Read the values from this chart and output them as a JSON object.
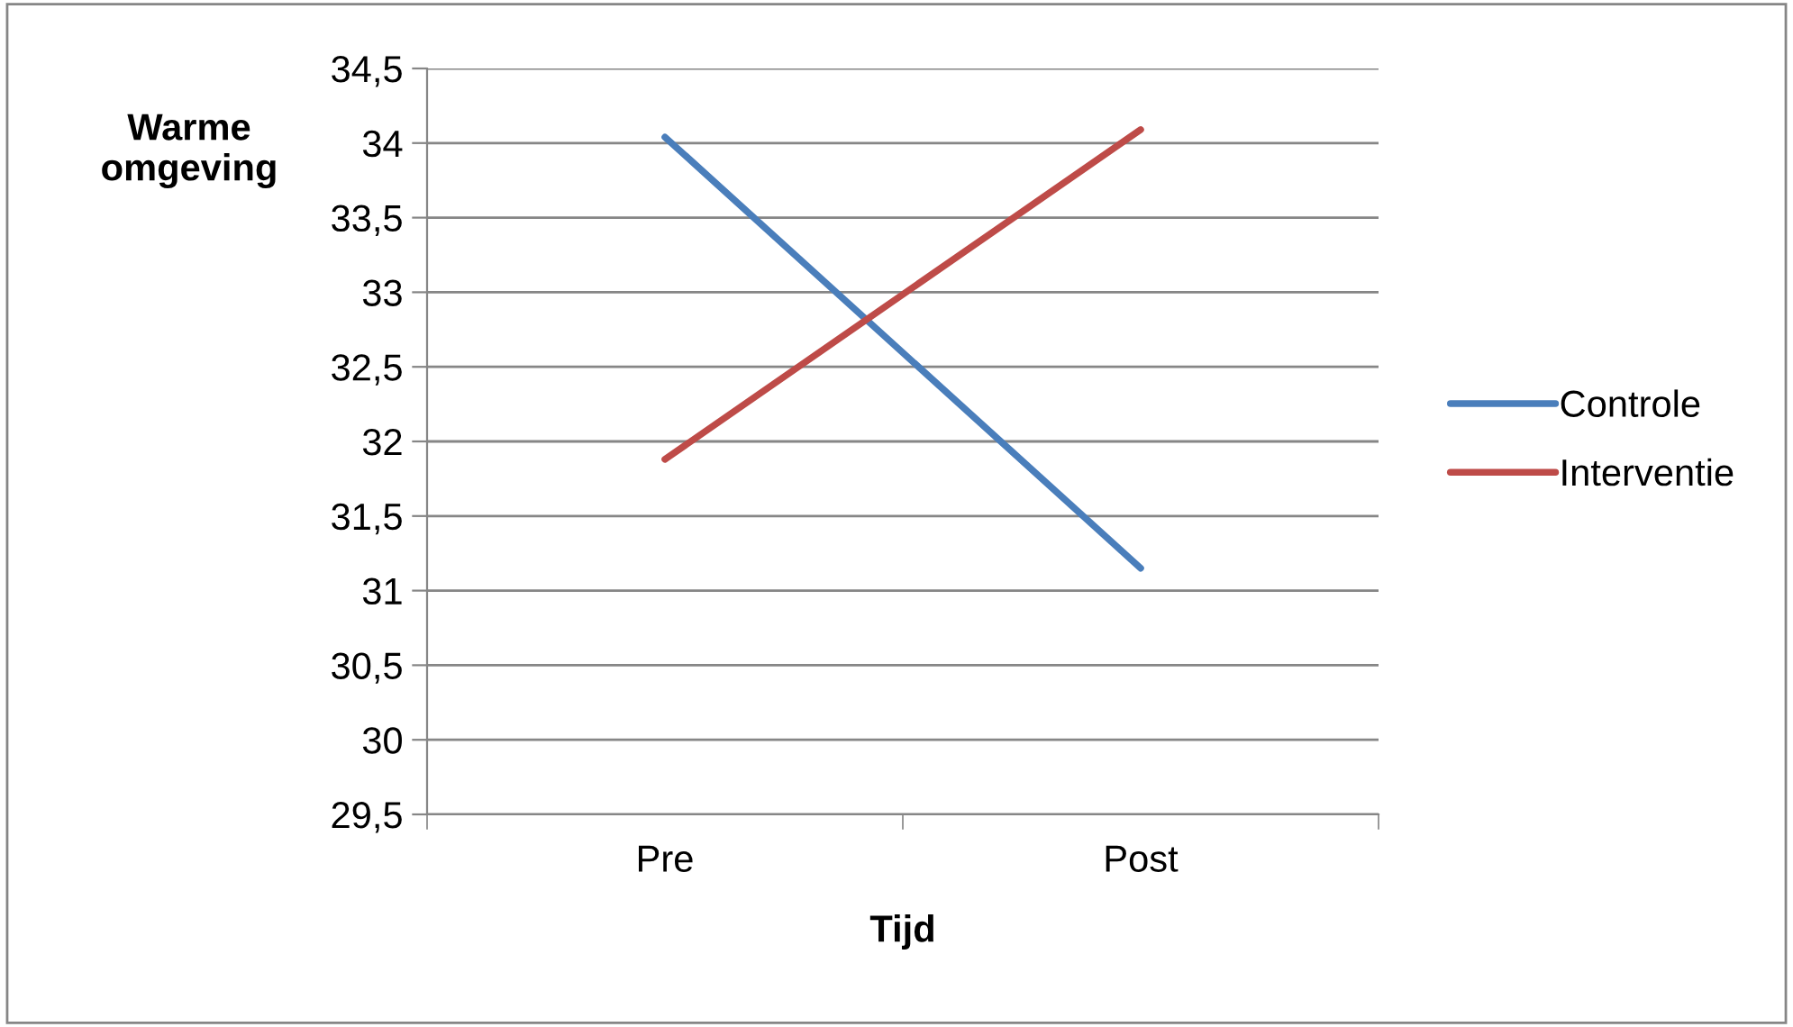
{
  "chart_data": {
    "type": "line",
    "xlabel": "Tijd",
    "ylabel": "Warme\nomgeving",
    "categories": [
      "Pre",
      "Post"
    ],
    "series": [
      {
        "name": "Controle",
        "color": "#4a7ebb",
        "values": [
          34.04,
          31.15
        ]
      },
      {
        "name": "Interventie",
        "color": "#be4b48",
        "values": [
          31.88,
          34.09
        ]
      }
    ],
    "ylim": [
      29.5,
      34.5
    ],
    "yticks": [
      {
        "value": 29.5,
        "label": "29,5"
      },
      30,
      {
        "value": 30.5,
        "label": "30,5"
      },
      31,
      {
        "value": 31.5,
        "label": "31,5"
      },
      32,
      {
        "value": 32.5,
        "label": "32,5"
      },
      33,
      {
        "value": 33.5,
        "label": "33,5"
      },
      34,
      {
        "value": 34.5,
        "label": "34,5"
      }
    ],
    "grid": "y",
    "legend": "right",
    "marker": "none",
    "line_style": "solid"
  }
}
